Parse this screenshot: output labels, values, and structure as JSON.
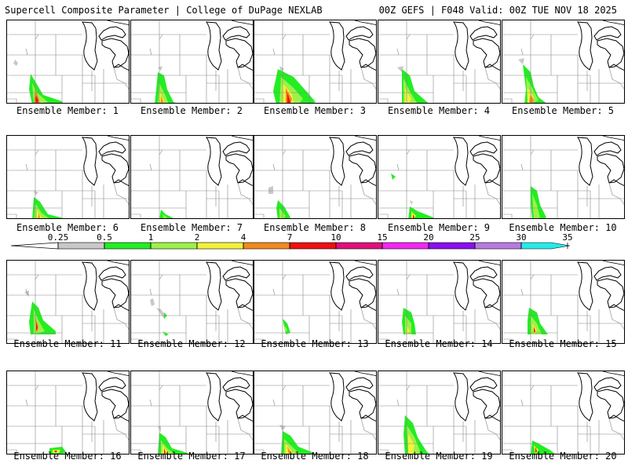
{
  "header": {
    "title": "Supercell Composite Parameter | College of DuPage NEXLAB",
    "run_info": "00Z GEFS | F048 Valid: 00Z TUE NOV 18 2025"
  },
  "members": [
    {
      "label": "Ensemble Member: 1"
    },
    {
      "label": "Ensemble Member: 2"
    },
    {
      "label": "Ensemble Member: 3"
    },
    {
      "label": "Ensemble Member: 4"
    },
    {
      "label": "Ensemble Member: 5"
    },
    {
      "label": "Ensemble Member: 6"
    },
    {
      "label": "Ensemble Member: 7"
    },
    {
      "label": "Ensemble Member: 8"
    },
    {
      "label": "Ensemble Member: 9"
    },
    {
      "label": "Ensemble Member: 10"
    },
    {
      "label": "Ensemble Member: 11"
    },
    {
      "label": "Ensemble Member: 12"
    },
    {
      "label": "Ensemble Member: 13"
    },
    {
      "label": "Ensemble Member: 14"
    },
    {
      "label": "Ensemble Member: 15"
    },
    {
      "label": "Ensemble Member: 16"
    },
    {
      "label": "Ensemble Member: 17"
    },
    {
      "label": "Ensemble Member: 18"
    },
    {
      "label": "Ensemble Member: 19"
    },
    {
      "label": "Ensemble Member: 20"
    }
  ],
  "colorbar": {
    "ticks": [
      "0.25",
      "0.5",
      "1",
      "2",
      "4",
      "7",
      "10",
      "15",
      "20",
      "25",
      "30",
      "35"
    ],
    "colors": [
      "#c8c8c8",
      "#22ee22",
      "#9ef04a",
      "#f2f23a",
      "#f08a1e",
      "#ee1111",
      "#e0107a",
      "#f028f0",
      "#8a10ee",
      "#b87ae0",
      "#28e8e8"
    ]
  }
}
